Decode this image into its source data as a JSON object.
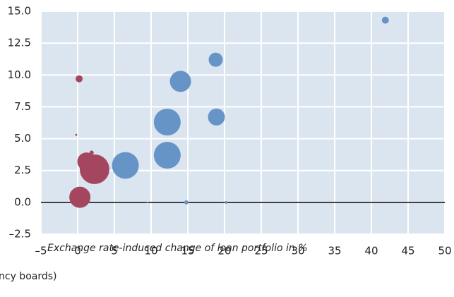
{
  "chart_data": {
    "type": "bubble",
    "xlabel": "Exchange rate-induced change of loan portfolio in %",
    "note": "ncy boards)",
    "xlim": [
      -5,
      50
    ],
    "xticks": [
      {
        "value": -5,
        "label": "–5"
      },
      0,
      5,
      10,
      15,
      20,
      25,
      30,
      35,
      40,
      45,
      50
    ],
    "ylim": [
      -2.5,
      15
    ],
    "yticks": [
      {
        "value": -2.5,
        "label": "–2.5"
      },
      {
        "value": 0,
        "label": "0.0"
      },
      2.5,
      {
        "value": 5,
        "label": "5.0"
      },
      7.5,
      {
        "value": 10,
        "label": "10.0"
      },
      12.5,
      {
        "value": 15,
        "label": "15.0"
      }
    ],
    "grid": true,
    "series": [
      {
        "color": "#6794c6",
        "x": [
          41.9,
          18.8,
          14.0,
          18.9,
          12.2,
          12.2,
          6.5,
          14.8,
          20.2,
          9.5
        ],
        "values": [
          14.3,
          11.2,
          9.5,
          6.7,
          6.3,
          3.7,
          2.9,
          0,
          0,
          0
        ],
        "sizes": [
          25,
          100,
          225,
          144,
          361,
          361,
          361,
          9,
          4,
          1
        ]
      },
      {
        "color": "#a4475e",
        "x": [
          0.2,
          -0.2,
          1.9,
          1.2,
          2.3,
          0.3
        ],
        "values": [
          9.7,
          5.3,
          3.9,
          3.2,
          2.6,
          0.4
        ],
        "sizes": [
          25,
          2,
          9,
          169,
          441,
          225
        ]
      }
    ]
  }
}
